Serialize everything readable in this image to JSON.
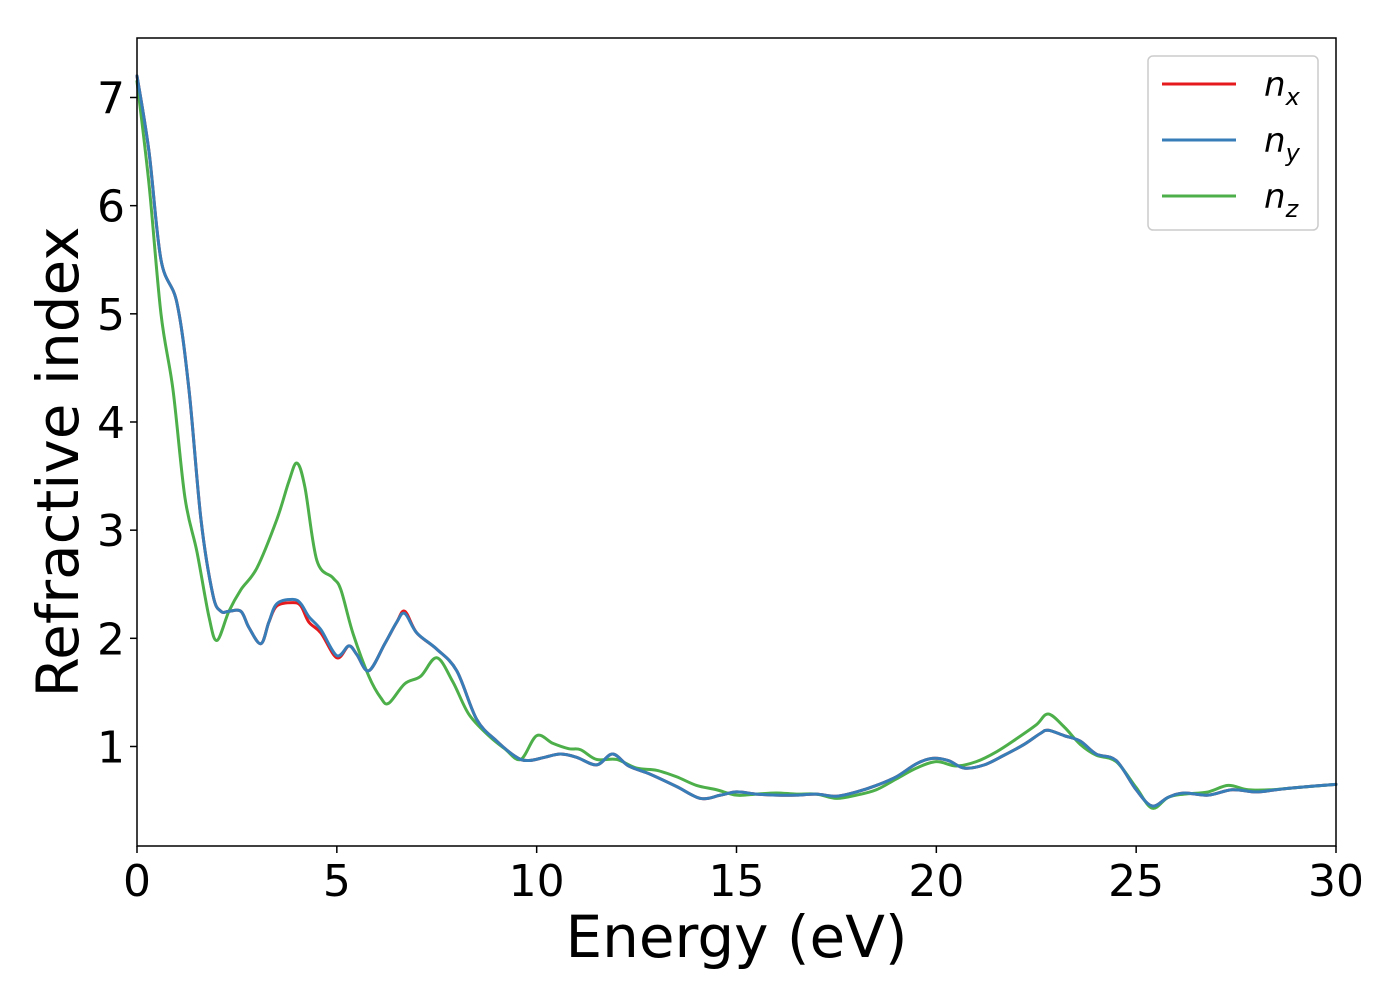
{
  "chart_data": {
    "type": "line",
    "title": "",
    "xlabel": "Energy (eV)",
    "ylabel": "Refractive index",
    "xlim": [
      0,
      30
    ],
    "ylim": [
      0.08,
      7.55
    ],
    "xticks": [
      0,
      5,
      10,
      15,
      20,
      25,
      30
    ],
    "xtick_labels": [
      "0",
      "5",
      "10",
      "15",
      "20",
      "25",
      "30"
    ],
    "yticks": [
      1,
      2,
      3,
      4,
      5,
      6,
      7
    ],
    "ytick_labels": [
      "1",
      "2",
      "3",
      "4",
      "5",
      "6",
      "7"
    ],
    "grid": false,
    "legend_position": "top-right",
    "series": [
      {
        "name": "n_x",
        "label_main": "n",
        "label_sub": "x",
        "color": "#e41a1c",
        "x": [
          0,
          0.3,
          0.6,
          1.0,
          1.3,
          1.6,
          1.9,
          2.1,
          2.3,
          2.6,
          2.8,
          3.1,
          3.3,
          3.5,
          3.9,
          4.1,
          4.3,
          4.6,
          5.0,
          5.3,
          5.5,
          5.8,
          6.2,
          6.5,
          6.7,
          7.0,
          7.5,
          8.0,
          8.5,
          9.0,
          9.5,
          9.8,
          10.2,
          10.6,
          11.0,
          11.5,
          11.9,
          12.3,
          12.8,
          13.5,
          14.1,
          14.6,
          15.0,
          15.5,
          16.0,
          16.5,
          17.0,
          17.5,
          18.0,
          18.5,
          19.0,
          19.5,
          19.9,
          20.3,
          20.7,
          21.2,
          21.7,
          22.2,
          22.6,
          22.8,
          23.2,
          23.6,
          24.0,
          24.5,
          25.0,
          25.4,
          25.8,
          26.2,
          26.8,
          27.4,
          28.0,
          28.5,
          29.0,
          30.0
        ],
        "y": [
          7.2,
          6.5,
          5.5,
          5.1,
          4.3,
          3.1,
          2.4,
          2.25,
          2.25,
          2.25,
          2.1,
          1.95,
          2.15,
          2.3,
          2.33,
          2.3,
          2.15,
          2.05,
          1.82,
          1.93,
          1.85,
          1.7,
          1.95,
          2.15,
          2.25,
          2.05,
          1.9,
          1.7,
          1.25,
          1.05,
          0.9,
          0.87,
          0.9,
          0.93,
          0.9,
          0.83,
          0.93,
          0.82,
          0.75,
          0.63,
          0.52,
          0.55,
          0.58,
          0.56,
          0.55,
          0.55,
          0.56,
          0.54,
          0.58,
          0.64,
          0.72,
          0.84,
          0.89,
          0.87,
          0.8,
          0.83,
          0.92,
          1.02,
          1.12,
          1.15,
          1.1,
          1.05,
          0.93,
          0.87,
          0.6,
          0.45,
          0.53,
          0.57,
          0.55,
          0.6,
          0.58,
          0.6,
          0.62,
          0.65
        ]
      },
      {
        "name": "n_y",
        "label_main": "n",
        "label_sub": "y",
        "color": "#377eb8",
        "x": [
          0,
          0.3,
          0.6,
          1.0,
          1.3,
          1.6,
          1.9,
          2.1,
          2.3,
          2.6,
          2.8,
          3.1,
          3.3,
          3.5,
          3.9,
          4.1,
          4.3,
          4.6,
          5.0,
          5.3,
          5.5,
          5.8,
          6.2,
          6.5,
          6.7,
          7.0,
          7.5,
          8.0,
          8.5,
          9.0,
          9.5,
          9.8,
          10.2,
          10.6,
          11.0,
          11.5,
          11.9,
          12.3,
          12.8,
          13.5,
          14.1,
          14.6,
          15.0,
          15.5,
          16.0,
          16.5,
          17.0,
          17.5,
          18.0,
          18.5,
          19.0,
          19.5,
          19.9,
          20.3,
          20.7,
          21.2,
          21.7,
          22.2,
          22.6,
          22.8,
          23.2,
          23.6,
          24.0,
          24.5,
          25.0,
          25.4,
          25.8,
          26.2,
          26.8,
          27.4,
          28.0,
          28.5,
          29.0,
          30.0
        ],
        "y": [
          7.2,
          6.5,
          5.5,
          5.1,
          4.3,
          3.1,
          2.4,
          2.25,
          2.25,
          2.25,
          2.1,
          1.95,
          2.15,
          2.32,
          2.36,
          2.32,
          2.2,
          2.08,
          1.84,
          1.93,
          1.85,
          1.7,
          1.95,
          2.15,
          2.23,
          2.05,
          1.9,
          1.7,
          1.25,
          1.05,
          0.9,
          0.87,
          0.9,
          0.93,
          0.9,
          0.83,
          0.93,
          0.82,
          0.75,
          0.63,
          0.52,
          0.55,
          0.58,
          0.56,
          0.55,
          0.55,
          0.56,
          0.54,
          0.58,
          0.64,
          0.72,
          0.84,
          0.89,
          0.87,
          0.8,
          0.83,
          0.92,
          1.02,
          1.12,
          1.15,
          1.1,
          1.05,
          0.93,
          0.87,
          0.6,
          0.45,
          0.53,
          0.57,
          0.55,
          0.6,
          0.58,
          0.6,
          0.62,
          0.65
        ]
      },
      {
        "name": "n_z",
        "label_main": "n",
        "label_sub": "z",
        "color": "#4daf4a",
        "x": [
          0,
          0.3,
          0.6,
          0.9,
          1.2,
          1.5,
          1.8,
          2.0,
          2.3,
          2.6,
          3.0,
          3.5,
          3.8,
          4.0,
          4.2,
          4.5,
          4.9,
          5.1,
          5.4,
          5.8,
          6.1,
          6.3,
          6.7,
          7.1,
          7.5,
          7.9,
          8.3,
          8.8,
          9.2,
          9.6,
          10.0,
          10.4,
          10.8,
          11.1,
          11.5,
          12.0,
          12.5,
          13.0,
          13.5,
          14.0,
          14.5,
          15.0,
          15.5,
          16.0,
          16.5,
          17.0,
          17.5,
          18.0,
          18.5,
          19.0,
          19.5,
          20.0,
          20.5,
          21.0,
          21.5,
          22.0,
          22.5,
          22.8,
          23.2,
          23.6,
          24.0,
          24.5,
          25.0,
          25.4,
          25.8,
          26.2,
          26.8,
          27.3,
          27.8,
          28.4,
          29.0,
          30.0
        ],
        "y": [
          7.15,
          6.2,
          5.0,
          4.3,
          3.3,
          2.8,
          2.2,
          1.98,
          2.25,
          2.45,
          2.65,
          3.1,
          3.45,
          3.62,
          3.4,
          2.72,
          2.56,
          2.45,
          2.05,
          1.65,
          1.45,
          1.4,
          1.58,
          1.65,
          1.82,
          1.6,
          1.3,
          1.1,
          0.98,
          0.88,
          1.1,
          1.03,
          0.98,
          0.97,
          0.88,
          0.88,
          0.8,
          0.78,
          0.72,
          0.64,
          0.6,
          0.55,
          0.56,
          0.57,
          0.56,
          0.56,
          0.52,
          0.55,
          0.6,
          0.7,
          0.8,
          0.86,
          0.82,
          0.86,
          0.95,
          1.07,
          1.2,
          1.3,
          1.18,
          1.02,
          0.92,
          0.86,
          0.62,
          0.43,
          0.53,
          0.56,
          0.58,
          0.64,
          0.6,
          0.6,
          0.62,
          0.65
        ]
      }
    ]
  }
}
